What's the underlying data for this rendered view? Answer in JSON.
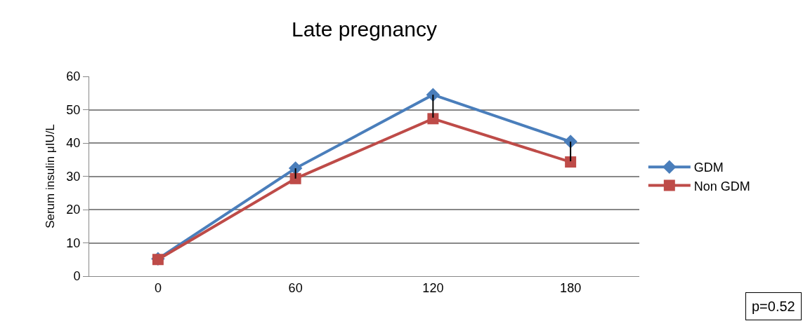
{
  "chart_data": {
    "type": "line",
    "title": "Late pregnancy",
    "ylabel": "Serum insulin μIU/L",
    "categories": [
      "0",
      "60",
      "120",
      "180"
    ],
    "series": [
      {
        "name": "GDM",
        "color": "#4a7ebb",
        "marker": "diamond",
        "values": [
          5.2,
          32.4,
          54.5,
          40.4
        ],
        "errors": [
          null,
          [
            29.3,
            32.4
          ],
          [
            47.6,
            54.5
          ],
          [
            34.5,
            40.4
          ]
        ]
      },
      {
        "name": "Non GDM",
        "color": "#be4b48",
        "marker": "square",
        "values": [
          5,
          29.3,
          47.3,
          34.3
        ]
      }
    ],
    "ylim": [
      0,
      60
    ],
    "yticks": [
      0,
      10,
      20,
      30,
      40,
      50,
      60
    ],
    "grid": "y",
    "legend": "right",
    "annotations": [
      "p=0.52"
    ]
  }
}
